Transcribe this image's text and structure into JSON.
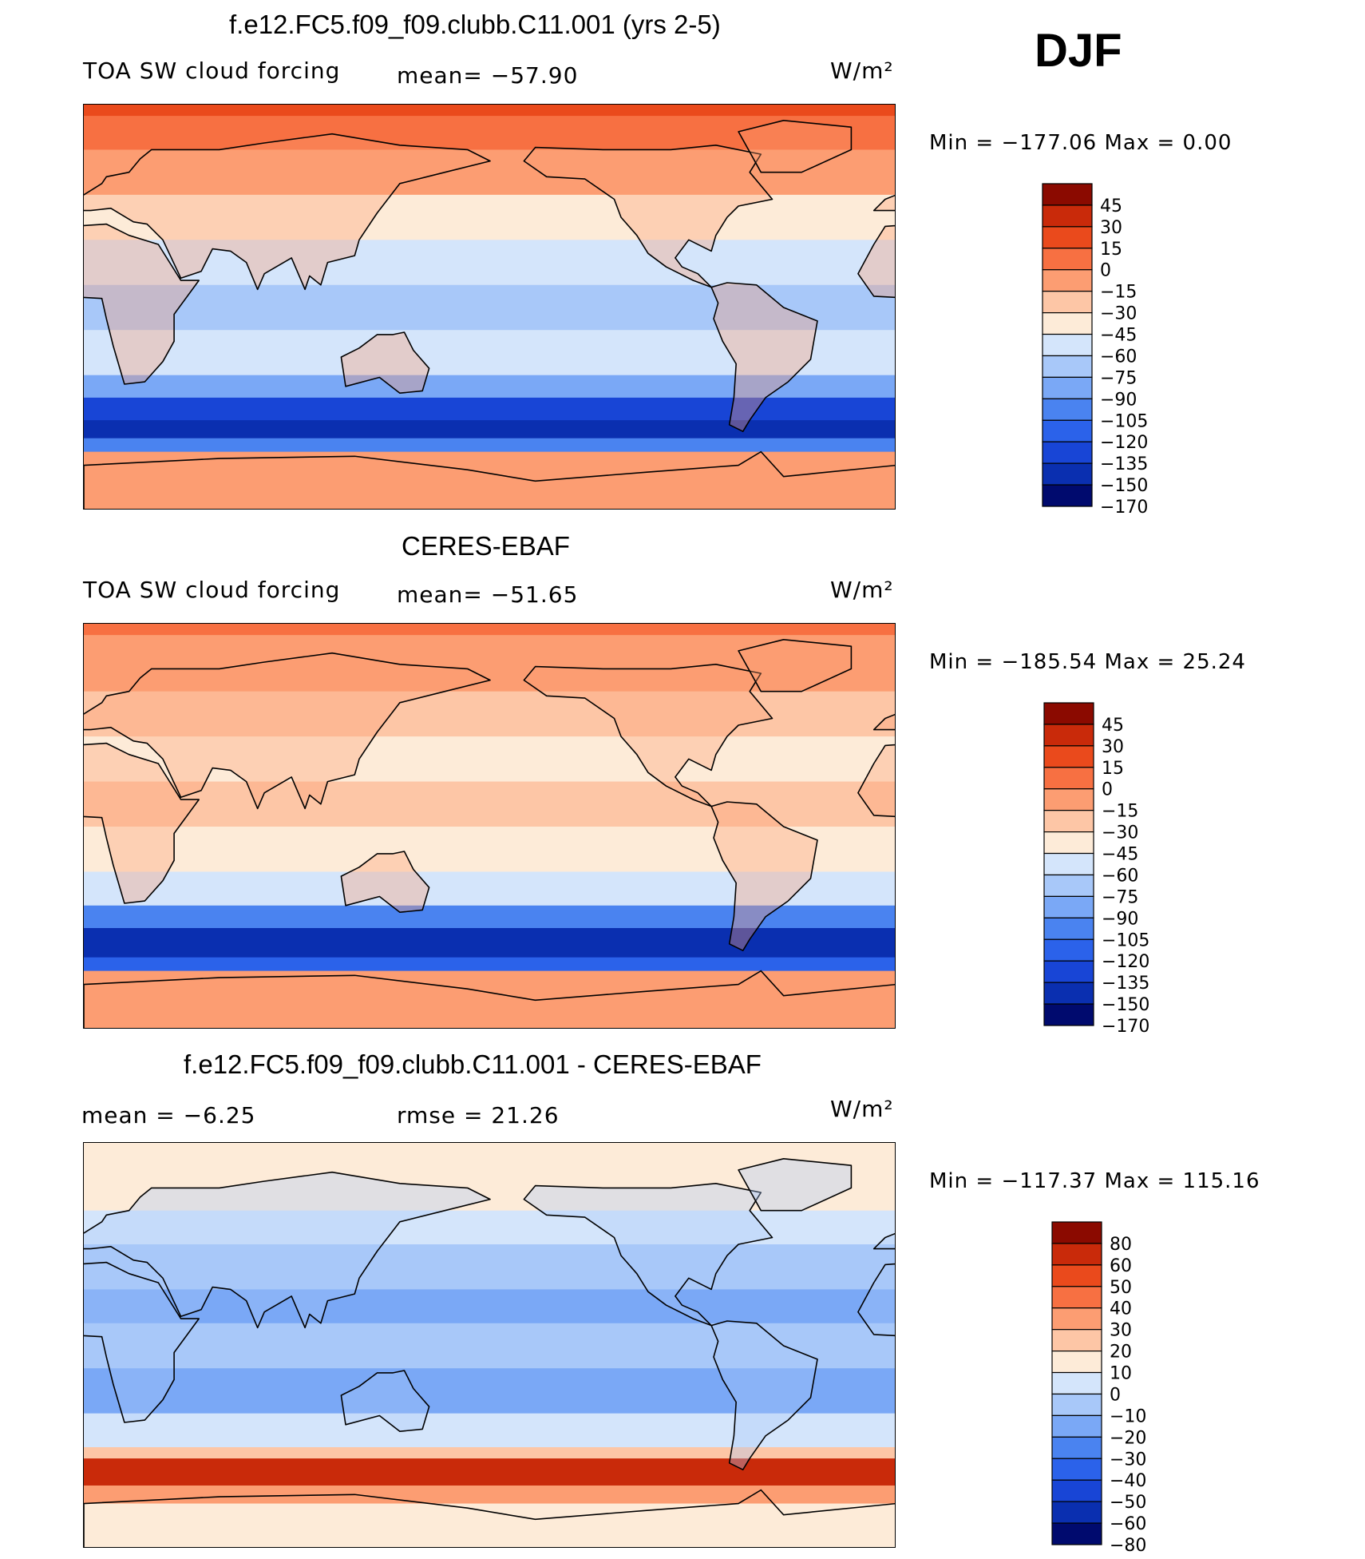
{
  "season": "DJF",
  "units_label": "W/m²",
  "colors": {
    "diverging_14": [
      "#000a6e",
      "#0a2fb0",
      "#1845d6",
      "#2b62ea",
      "#4a83f0",
      "#7aa8f6",
      "#a8c8f9",
      "#d4e5fb",
      "#fdebd8",
      "#fdc6a6",
      "#fc9d72",
      "#f77042",
      "#ea4a1c",
      "#c92a0a",
      "#8b0a00"
    ],
    "land_line": "#000000"
  },
  "chart_data": [
    {
      "type": "heatmap",
      "title": "f.e12.FC5.f09_f09.clubb.C11.001 (yrs 2-5)",
      "left_label": "TOA SW cloud forcing",
      "stat_label": "mean= −57.90",
      "units": "W/m²",
      "min_max": "Min  =  −177.06  Max  =     0.00",
      "colorbar_levels": [
        "45",
        "30",
        "15",
        "0",
        "−15",
        "−30",
        "−45",
        "−60",
        "−75",
        "−90",
        "−105",
        "−120",
        "−135",
        "−150",
        "−170"
      ],
      "bands": [
        {
          "lat_top": 90,
          "lat_bot": 85,
          "level": 12
        },
        {
          "lat_top": 85,
          "lat_bot": 70,
          "level": 11
        },
        {
          "lat_top": 70,
          "lat_bot": 50,
          "level": 10
        },
        {
          "lat_top": 50,
          "lat_bot": 30,
          "level": 8
        },
        {
          "lat_top": 30,
          "lat_bot": 10,
          "level": 7
        },
        {
          "lat_top": 10,
          "lat_bot": -10,
          "level": 6
        },
        {
          "lat_top": -10,
          "lat_bot": -30,
          "level": 7
        },
        {
          "lat_top": -30,
          "lat_bot": -40,
          "level": 5
        },
        {
          "lat_top": -40,
          "lat_bot": -50,
          "level": 2
        },
        {
          "lat_top": -50,
          "lat_bot": -58,
          "level": 1
        },
        {
          "lat_top": -58,
          "lat_bot": -64,
          "level": 4
        },
        {
          "lat_top": -64,
          "lat_bot": -90,
          "level": 10
        }
      ]
    },
    {
      "type": "heatmap",
      "title": "CERES-EBAF",
      "left_label": "TOA SW cloud forcing",
      "stat_label": "mean= −51.65",
      "units": "W/m²",
      "min_max": "Min  =  −185.54  Max  =    25.24",
      "colorbar_levels": [
        "45",
        "30",
        "15",
        "0",
        "−15",
        "−30",
        "−45",
        "−60",
        "−75",
        "−90",
        "−105",
        "−120",
        "−135",
        "−150",
        "−170"
      ],
      "bands": [
        {
          "lat_top": 90,
          "lat_bot": 85,
          "level": 11
        },
        {
          "lat_top": 85,
          "lat_bot": 60,
          "level": 10
        },
        {
          "lat_top": 60,
          "lat_bot": 40,
          "level": 9
        },
        {
          "lat_top": 40,
          "lat_bot": 20,
          "level": 8
        },
        {
          "lat_top": 20,
          "lat_bot": 0,
          "level": 9
        },
        {
          "lat_top": 0,
          "lat_bot": -20,
          "level": 8
        },
        {
          "lat_top": -20,
          "lat_bot": -35,
          "level": 7
        },
        {
          "lat_top": -35,
          "lat_bot": -45,
          "level": 4
        },
        {
          "lat_top": -45,
          "lat_bot": -58,
          "level": 1
        },
        {
          "lat_top": -58,
          "lat_bot": -64,
          "level": 3
        },
        {
          "lat_top": -64,
          "lat_bot": -90,
          "level": 10
        }
      ]
    },
    {
      "type": "heatmap",
      "title": "f.e12.FC5.f09_f09.clubb.C11.001 - CERES-EBAF",
      "left_label": "mean  =    −6.25",
      "stat_label": "rmse  =    21.26",
      "units": "W/m²",
      "min_max": "Min  =  −117.37  Max  =  115.16",
      "colorbar_levels": [
        "80",
        "60",
        "50",
        "40",
        "30",
        "20",
        "10",
        "0",
        "−10",
        "−20",
        "−30",
        "−40",
        "−50",
        "−60",
        "−80"
      ],
      "bands": [
        {
          "lat_top": 90,
          "lat_bot": 60,
          "level": 8
        },
        {
          "lat_top": 60,
          "lat_bot": 45,
          "level": 7
        },
        {
          "lat_top": 45,
          "lat_bot": 25,
          "level": 6
        },
        {
          "lat_top": 25,
          "lat_bot": 10,
          "level": 5
        },
        {
          "lat_top": 10,
          "lat_bot": -10,
          "level": 6
        },
        {
          "lat_top": -10,
          "lat_bot": -30,
          "level": 5
        },
        {
          "lat_top": -30,
          "lat_bot": -45,
          "level": 7
        },
        {
          "lat_top": -45,
          "lat_bot": -50,
          "level": 9
        },
        {
          "lat_top": -50,
          "lat_bot": -62,
          "level": 13
        },
        {
          "lat_top": -62,
          "lat_bot": -70,
          "level": 10
        },
        {
          "lat_top": -70,
          "lat_bot": -90,
          "level": 8
        }
      ]
    }
  ]
}
